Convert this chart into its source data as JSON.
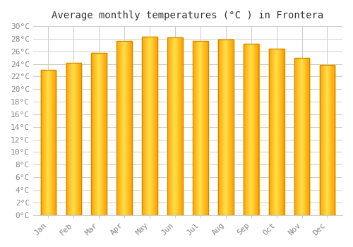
{
  "title": "Average monthly temperatures (°C ) in Frontera",
  "months": [
    "Jan",
    "Feb",
    "Mar",
    "Apr",
    "May",
    "Jun",
    "Jul",
    "Aug",
    "Sep",
    "Oct",
    "Nov",
    "Dec"
  ],
  "values": [
    23.1,
    24.2,
    25.7,
    27.7,
    28.3,
    28.2,
    27.7,
    27.9,
    27.2,
    26.4,
    25.0,
    23.8
  ],
  "bar_color_center": "#FFD700",
  "bar_color_edge": "#FFA500",
  "bar_edge_color": "#CC8800",
  "ylim": [
    0,
    30
  ],
  "ytick_step": 2,
  "background_color": "#ffffff",
  "grid_color": "#cccccc",
  "title_fontsize": 10,
  "tick_fontsize": 8,
  "font_family": "monospace",
  "bar_width": 0.6
}
